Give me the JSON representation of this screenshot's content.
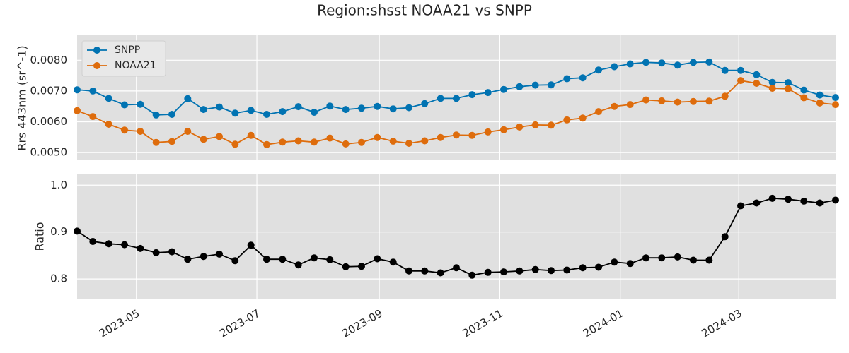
{
  "chart_data": {
    "type": "line",
    "title": "Region:shsst NOAA21 vs SNPP",
    "x": [
      "2023-04-01",
      "2023-04-09",
      "2023-04-17",
      "2023-04-25",
      "2023-05-03",
      "2023-05-11",
      "2023-05-19",
      "2023-05-27",
      "2023-06-04",
      "2023-06-12",
      "2023-06-20",
      "2023-06-28",
      "2023-07-06",
      "2023-07-14",
      "2023-07-22",
      "2023-07-30",
      "2023-08-07",
      "2023-08-15",
      "2023-08-23",
      "2023-08-31",
      "2023-09-08",
      "2023-09-16",
      "2023-09-24",
      "2023-10-02",
      "2023-10-10",
      "2023-10-18",
      "2023-10-26",
      "2023-11-03",
      "2023-11-11",
      "2023-11-19",
      "2023-11-27",
      "2023-12-05",
      "2023-12-13",
      "2023-12-21",
      "2023-12-29",
      "2024-01-06",
      "2024-01-14",
      "2024-01-22",
      "2024-01-30",
      "2024-02-07",
      "2024-02-15",
      "2024-02-23",
      "2024-03-02",
      "2024-03-10",
      "2024-03-18",
      "2024-03-26",
      "2024-04-03",
      "2024-04-11",
      "2024-04-19"
    ],
    "panels": [
      {
        "ylabel": "Rrs 443nm (sr^-1)",
        "ylim": [
          0.00475,
          0.00881
        ],
        "yticks": [
          0.005,
          0.006,
          0.007,
          0.008
        ],
        "ytick_labels": [
          "0.0050",
          "0.0060",
          "0.0070",
          "0.0080"
        ],
        "legend_position": "upper-left",
        "series": [
          {
            "name": "SNPP",
            "color": "#0173b2",
            "values": [
              0.00704,
              0.007,
              0.00676,
              0.00655,
              0.00657,
              0.00622,
              0.00624,
              0.00675,
              0.0064,
              0.00648,
              0.00628,
              0.00637,
              0.00624,
              0.00633,
              0.00649,
              0.00631,
              0.00651,
              0.0064,
              0.00644,
              0.0065,
              0.00642,
              0.00646,
              0.00659,
              0.00676,
              0.00676,
              0.00688,
              0.00695,
              0.00705,
              0.00714,
              0.00719,
              0.0072,
              0.0074,
              0.00743,
              0.00768,
              0.00779,
              0.00788,
              0.00793,
              0.00791,
              0.00784,
              0.00793,
              0.00794,
              0.00767,
              0.00767,
              0.00753,
              0.00728,
              0.00727,
              0.00703,
              0.00687,
              0.00679
            ]
          },
          {
            "name": "NOAA21",
            "color": "#de6c0c",
            "values": [
              0.00636,
              0.00617,
              0.00592,
              0.00573,
              0.00569,
              0.00533,
              0.00536,
              0.00569,
              0.00543,
              0.00552,
              0.00527,
              0.00556,
              0.00526,
              0.00534,
              0.00538,
              0.00534,
              0.00547,
              0.00528,
              0.00533,
              0.00549,
              0.00537,
              0.0053,
              0.00538,
              0.00549,
              0.00557,
              0.00556,
              0.00567,
              0.00574,
              0.00583,
              0.0059,
              0.00589,
              0.00606,
              0.00612,
              0.00633,
              0.0065,
              0.00656,
              0.00671,
              0.00668,
              0.00664,
              0.00666,
              0.00667,
              0.00683,
              0.00734,
              0.00725,
              0.00709,
              0.00707,
              0.00678,
              0.00661,
              0.00656
            ]
          }
        ]
      },
      {
        "ylabel": "Ratio",
        "ylim": [
          0.758,
          1.023
        ],
        "yticks": [
          0.8,
          0.9,
          1.0
        ],
        "ytick_labels": [
          "0.8",
          "0.9",
          "1.0"
        ],
        "series": [
          {
            "color": "#000000",
            "values": [
              0.902,
              0.88,
              0.875,
              0.873,
              0.865,
              0.856,
              0.858,
              0.842,
              0.848,
              0.853,
              0.839,
              0.872,
              0.842,
              0.842,
              0.83,
              0.845,
              0.841,
              0.826,
              0.827,
              0.843,
              0.836,
              0.817,
              0.817,
              0.813,
              0.824,
              0.808,
              0.814,
              0.815,
              0.817,
              0.82,
              0.818,
              0.819,
              0.824,
              0.825,
              0.836,
              0.833,
              0.845,
              0.845,
              0.847,
              0.84,
              0.84,
              0.89,
              0.956,
              0.962,
              0.972,
              0.97,
              0.966,
              0.962,
              0.968
            ]
          }
        ]
      }
    ],
    "xticks": [
      "2023-05-01",
      "2023-07-01",
      "2023-09-01",
      "2023-11-01",
      "2024-01-01",
      "2024-03-01"
    ],
    "xtick_labels": [
      "2023-05",
      "2023-07",
      "2023-09",
      "2023-11",
      "2024-01",
      "2024-03"
    ],
    "xlim": [
      "2023-04-01",
      "2024-04-19"
    ],
    "grid": true,
    "background": "#e0e0e0"
  }
}
